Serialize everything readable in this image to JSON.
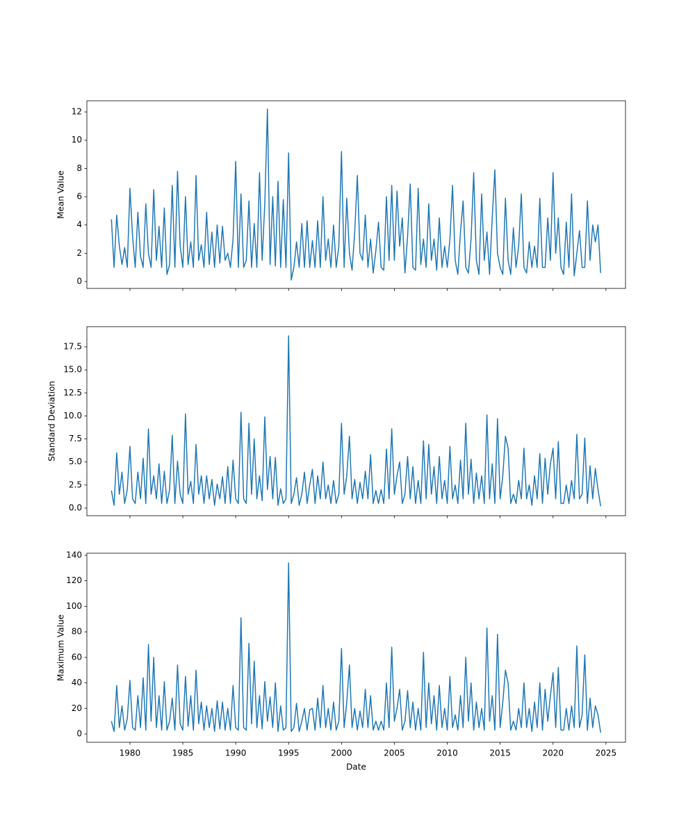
{
  "chart_data": [
    {
      "type": "line",
      "ylabel": "Mean Value",
      "color": "#1f77b4",
      "xlim": [
        1975.93,
        2026.85
      ],
      "xticks": [
        1980,
        1985,
        1990,
        1995,
        2000,
        2005,
        2010,
        2015,
        2020,
        2025
      ],
      "show_xtick_labels": false,
      "ylim": [
        -0.49,
        12.79
      ],
      "yticks": [
        0,
        2,
        4,
        6,
        8,
        10,
        12
      ],
      "x": [
        1978.25,
        1978.5,
        1978.75,
        1979,
        1979.25,
        1979.5,
        1979.75,
        1980,
        1980.25,
        1980.5,
        1980.75,
        1981,
        1981.25,
        1981.5,
        1981.75,
        1982,
        1982.25,
        1982.5,
        1982.75,
        1983,
        1983.25,
        1983.5,
        1983.75,
        1984,
        1984.25,
        1984.5,
        1984.75,
        1985,
        1985.25,
        1985.5,
        1985.75,
        1986,
        1986.25,
        1986.5,
        1986.75,
        1987,
        1987.25,
        1987.5,
        1987.75,
        1988,
        1988.25,
        1988.5,
        1988.75,
        1989,
        1989.25,
        1989.5,
        1989.75,
        1990,
        1990.25,
        1990.5,
        1990.75,
        1991,
        1991.25,
        1991.5,
        1991.75,
        1992,
        1992.25,
        1992.5,
        1992.75,
        1993,
        1993.25,
        1993.5,
        1993.75,
        1994,
        1994.25,
        1994.5,
        1994.75,
        1995,
        1995.25,
        1995.5,
        1995.75,
        1996,
        1996.25,
        1996.5,
        1996.75,
        1997,
        1997.25,
        1997.5,
        1997.75,
        1998,
        1998.25,
        1998.5,
        1998.75,
        1999,
        1999.25,
        1999.5,
        1999.75,
        2000,
        2000.25,
        2000.5,
        2000.75,
        2001,
        2001.25,
        2001.5,
        2001.75,
        2002,
        2002.25,
        2002.5,
        2002.75,
        2003,
        2003.25,
        2003.5,
        2003.75,
        2004,
        2004.25,
        2004.5,
        2004.75,
        2005,
        2005.25,
        2005.5,
        2005.75,
        2006,
        2006.25,
        2006.5,
        2006.75,
        2007,
        2007.25,
        2007.5,
        2007.75,
        2008,
        2008.25,
        2008.5,
        2008.75,
        2009,
        2009.25,
        2009.5,
        2009.75,
        2010,
        2010.25,
        2010.5,
        2010.75,
        2011,
        2011.25,
        2011.5,
        2011.75,
        2012,
        2012.25,
        2012.5,
        2012.75,
        2013,
        2013.25,
        2013.5,
        2013.75,
        2014,
        2014.25,
        2014.5,
        2014.75,
        2015,
        2015.25,
        2015.5,
        2015.75,
        2016,
        2016.25,
        2016.5,
        2016.75,
        2017,
        2017.25,
        2017.5,
        2017.75,
        2018,
        2018.25,
        2018.5,
        2018.75,
        2019,
        2019.25,
        2019.5,
        2019.75,
        2020,
        2020.25,
        2020.5,
        2020.75,
        2021,
        2021.25,
        2021.5,
        2021.75,
        2022,
        2022.25,
        2022.5,
        2022.75,
        2023,
        2023.25,
        2023.5,
        2023.75,
        2024,
        2024.25,
        2024.5
      ],
      "values": [
        4.4,
        1.0,
        4.7,
        2.5,
        1.2,
        2.4,
        1.0,
        6.6,
        3.2,
        1.0,
        4.9,
        1.8,
        1.0,
        5.5,
        2.0,
        1.0,
        6.5,
        1.5,
        3.9,
        1.0,
        5.2,
        0.5,
        1.2,
        6.8,
        1.0,
        7.8,
        2.5,
        1.0,
        6.0,
        1.2,
        2.8,
        1.0,
        7.5,
        1.5,
        2.6,
        1.0,
        4.9,
        1.2,
        3.5,
        1.0,
        4.0,
        1.3,
        3.9,
        1.5,
        2.0,
        1.0,
        3.0,
        8.5,
        1.0,
        6.2,
        1.0,
        1.5,
        5.7,
        1.0,
        4.1,
        1.0,
        7.7,
        1.5,
        5.5,
        12.2,
        1.2,
        6.0,
        1.1,
        7.1,
        1.0,
        5.8,
        1.0,
        9.1,
        0.1,
        1.0,
        2.8,
        1.0,
        4.1,
        1.0,
        4.3,
        1.0,
        2.9,
        1.0,
        4.3,
        1.0,
        6.0,
        1.5,
        3.0,
        1.0,
        4.0,
        1.0,
        2.5,
        9.2,
        1.0,
        5.9,
        2.0,
        0.8,
        3.5,
        7.5,
        2.0,
        1.5,
        4.7,
        1.0,
        3.0,
        0.6,
        2.2,
        4.2,
        1.0,
        0.8,
        6.0,
        1.5,
        6.8,
        1.5,
        6.4,
        2.5,
        4.5,
        0.6,
        3.2,
        6.9,
        1.0,
        0.8,
        6.6,
        1.2,
        3.0,
        1.0,
        5.5,
        1.5,
        3.0,
        0.8,
        4.5,
        1.0,
        2.5,
        1.0,
        3.0,
        6.8,
        1.5,
        0.5,
        3.5,
        5.7,
        1.0,
        0.6,
        3.0,
        7.7,
        1.5,
        0.5,
        6.2,
        1.5,
        3.5,
        0.5,
        4.5,
        7.9,
        2.0,
        1.0,
        0.5,
        5.9,
        1.5,
        0.5,
        3.8,
        1.0,
        2.5,
        6.2,
        1.0,
        0.6,
        2.8,
        1.0,
        2.5,
        1.0,
        5.9,
        1.0,
        1.0,
        4.5,
        1.5,
        7.7,
        2.0,
        4.5,
        1.0,
        0.5,
        4.2,
        1.0,
        6.2,
        0.4,
        2.0,
        3.6,
        1.0,
        1.0,
        5.7,
        1.5,
        4.0,
        2.8,
        4.0,
        0.6
      ]
    },
    {
      "type": "line",
      "ylabel": "Standard Deviation",
      "color": "#1f77b4",
      "xlim": [
        1975.93,
        2026.85
      ],
      "xticks": [
        1980,
        1985,
        1990,
        1995,
        2000,
        2005,
        2010,
        2015,
        2020,
        2025
      ],
      "show_xtick_labels": false,
      "ylim": [
        -0.83,
        19.69
      ],
      "yticks": [
        {
          "value": 0,
          "label": "0.0"
        },
        2.5,
        {
          "value": 5,
          "label": "5.0"
        },
        7.5,
        {
          "value": 10,
          "label": "10.0"
        },
        12.5,
        {
          "value": 15,
          "label": "15.0"
        },
        17.5
      ],
      "x": [
        1978.25,
        1978.5,
        1978.75,
        1979,
        1979.25,
        1979.5,
        1979.75,
        1980,
        1980.25,
        1980.5,
        1980.75,
        1981,
        1981.25,
        1981.5,
        1981.75,
        1982,
        1982.25,
        1982.5,
        1982.75,
        1983,
        1983.25,
        1983.5,
        1983.75,
        1984,
        1984.25,
        1984.5,
        1984.75,
        1985,
        1985.25,
        1985.5,
        1985.75,
        1986,
        1986.25,
        1986.5,
        1986.75,
        1987,
        1987.25,
        1987.5,
        1987.75,
        1988,
        1988.25,
        1988.5,
        1988.75,
        1989,
        1989.25,
        1989.5,
        1989.75,
        1990,
        1990.25,
        1990.5,
        1990.75,
        1991,
        1991.25,
        1991.5,
        1991.75,
        1992,
        1992.25,
        1992.5,
        1992.75,
        1993,
        1993.25,
        1993.5,
        1993.75,
        1994,
        1994.25,
        1994.5,
        1994.75,
        1995,
        1995.25,
        1995.5,
        1995.75,
        1996,
        1996.25,
        1996.5,
        1996.75,
        1997,
        1997.25,
        1997.5,
        1997.75,
        1998,
        1998.25,
        1998.5,
        1998.75,
        1999,
        1999.25,
        1999.5,
        1999.75,
        2000,
        2000.25,
        2000.5,
        2000.75,
        2001,
        2001.25,
        2001.5,
        2001.75,
        2002,
        2002.25,
        2002.5,
        2002.75,
        2003,
        2003.25,
        2003.5,
        2003.75,
        2004,
        2004.25,
        2004.5,
        2004.75,
        2005,
        2005.25,
        2005.5,
        2005.75,
        2006,
        2006.25,
        2006.5,
        2006.75,
        2007,
        2007.25,
        2007.5,
        2007.75,
        2008,
        2008.25,
        2008.5,
        2008.75,
        2009,
        2009.25,
        2009.5,
        2009.75,
        2010,
        2010.25,
        2010.5,
        2010.75,
        2011,
        2011.25,
        2011.5,
        2011.75,
        2012,
        2012.25,
        2012.5,
        2012.75,
        2013,
        2013.25,
        2013.5,
        2013.75,
        2014,
        2014.25,
        2014.5,
        2014.75,
        2015,
        2015.25,
        2015.5,
        2015.75,
        2016,
        2016.25,
        2016.5,
        2016.75,
        2017,
        2017.25,
        2017.5,
        2017.75,
        2018,
        2018.25,
        2018.5,
        2018.75,
        2019,
        2019.25,
        2019.5,
        2019.75,
        2020,
        2020.25,
        2020.5,
        2020.75,
        2021,
        2021.25,
        2021.5,
        2021.75,
        2022,
        2022.25,
        2022.5,
        2022.75,
        2023,
        2023.25,
        2023.5,
        2023.75,
        2024,
        2024.25,
        2024.5
      ],
      "values": [
        1.9,
        0.3,
        6.0,
        1.5,
        3.9,
        0.5,
        2.0,
        6.7,
        1.0,
        0.5,
        3.9,
        1.0,
        5.4,
        0.5,
        8.6,
        1.5,
        3.5,
        1.0,
        4.8,
        0.5,
        4.0,
        0.5,
        2.0,
        7.9,
        0.5,
        5.1,
        1.5,
        0.5,
        10.2,
        1.5,
        2.9,
        0.5,
        6.9,
        1.5,
        3.5,
        0.5,
        3.5,
        1.0,
        3.1,
        0.3,
        2.6,
        1.0,
        3.4,
        0.5,
        4.5,
        0.5,
        5.2,
        1.0,
        0.5,
        10.4,
        1.0,
        0.5,
        9.2,
        1.5,
        7.5,
        1.0,
        3.5,
        0.8,
        9.9,
        2.0,
        5.6,
        1.0,
        5.5,
        0.3,
        2.1,
        0.5,
        1.0,
        18.7,
        0.5,
        1.5,
        3.3,
        0.3,
        1.5,
        3.9,
        0.5,
        2.5,
        4.2,
        0.5,
        3.5,
        1.0,
        5.0,
        1.0,
        2.5,
        0.5,
        3.0,
        0.5,
        1.5,
        9.2,
        1.5,
        3.5,
        7.8,
        1.0,
        3.1,
        0.5,
        2.8,
        1.0,
        4.0,
        1.0,
        5.8,
        0.5,
        1.9,
        0.5,
        2.0,
        0.5,
        6.4,
        1.0,
        8.6,
        1.5,
        3.5,
        5.0,
        0.5,
        1.5,
        5.6,
        1.0,
        4.5,
        0.5,
        3.0,
        0.5,
        7.3,
        1.0,
        6.9,
        1.5,
        4.5,
        0.5,
        5.6,
        1.0,
        3.0,
        0.5,
        6.7,
        1.0,
        2.5,
        0.5,
        5.2,
        1.0,
        9.2,
        1.5,
        5.3,
        0.5,
        3.8,
        1.0,
        3.5,
        0.5,
        10.1,
        1.0,
        4.8,
        0.5,
        9.7,
        1.0,
        3.5,
        7.8,
        6.5,
        0.5,
        1.5,
        0.5,
        3.0,
        1.0,
        6.5,
        1.0,
        2.5,
        0.3,
        3.5,
        1.0,
        5.9,
        0.5,
        5.4,
        1.5,
        4.8,
        6.5,
        1.0,
        7.2,
        0.5,
        0.5,
        2.5,
        0.5,
        3.0,
        1.0,
        8.0,
        1.0,
        1.5,
        7.6,
        0.5,
        4.6,
        1.0,
        4.3,
        2.0,
        0.2
      ]
    },
    {
      "type": "line",
      "ylabel": "Maximum Value",
      "xlabel": "Date",
      "color": "#1f77b4",
      "xlim": [
        1975.93,
        2026.85
      ],
      "xticks": [
        1980,
        1985,
        1990,
        1995,
        2000,
        2005,
        2010,
        2015,
        2020,
        2025
      ],
      "show_xtick_labels": true,
      "ylim": [
        -6.5,
        141.6
      ],
      "yticks": [
        0,
        20,
        40,
        60,
        80,
        100,
        120,
        140
      ],
      "x": [
        1978.25,
        1978.5,
        1978.75,
        1979,
        1979.25,
        1979.5,
        1979.75,
        1980,
        1980.25,
        1980.5,
        1980.75,
        1981,
        1981.25,
        1981.5,
        1981.75,
        1982,
        1982.25,
        1982.5,
        1982.75,
        1983,
        1983.25,
        1983.5,
        1983.75,
        1984,
        1984.25,
        1984.5,
        1984.75,
        1985,
        1985.25,
        1985.5,
        1985.75,
        1986,
        1986.25,
        1986.5,
        1986.75,
        1987,
        1987.25,
        1987.5,
        1987.75,
        1988,
        1988.25,
        1988.5,
        1988.75,
        1989,
        1989.25,
        1989.5,
        1989.75,
        1990,
        1990.25,
        1990.5,
        1990.75,
        1991,
        1991.25,
        1991.5,
        1991.75,
        1992,
        1992.25,
        1992.5,
        1992.75,
        1993,
        1993.25,
        1993.5,
        1993.75,
        1994,
        1994.25,
        1994.5,
        1994.75,
        1995,
        1995.25,
        1995.5,
        1995.75,
        1996,
        1996.25,
        1996.5,
        1996.75,
        1997,
        1997.25,
        1997.5,
        1997.75,
        1998,
        1998.25,
        1998.5,
        1998.75,
        1999,
        1999.25,
        1999.5,
        1999.75,
        2000,
        2000.25,
        2000.5,
        2000.75,
        2001,
        2001.25,
        2001.5,
        2001.75,
        2002,
        2002.25,
        2002.5,
        2002.75,
        2003,
        2003.25,
        2003.5,
        2003.75,
        2004,
        2004.25,
        2004.5,
        2004.75,
        2005,
        2005.25,
        2005.5,
        2005.75,
        2006,
        2006.25,
        2006.5,
        2006.75,
        2007,
        2007.25,
        2007.5,
        2007.75,
        2008,
        2008.25,
        2008.5,
        2008.75,
        2009,
        2009.25,
        2009.5,
        2009.75,
        2010,
        2010.25,
        2010.5,
        2010.75,
        2011,
        2011.25,
        2011.5,
        2011.75,
        2012,
        2012.25,
        2012.5,
        2012.75,
        2013,
        2013.25,
        2013.5,
        2013.75,
        2014,
        2014.25,
        2014.5,
        2014.75,
        2015,
        2015.25,
        2015.5,
        2015.75,
        2016,
        2016.25,
        2016.5,
        2016.75,
        2017,
        2017.25,
        2017.5,
        2017.75,
        2018,
        2018.25,
        2018.5,
        2018.75,
        2019,
        2019.25,
        2019.5,
        2019.75,
        2020,
        2020.25,
        2020.5,
        2020.75,
        2021,
        2021.25,
        2021.5,
        2021.75,
        2022,
        2022.25,
        2022.5,
        2022.75,
        2023,
        2023.25,
        2023.5,
        2023.75,
        2024,
        2024.25,
        2024.5
      ],
      "values": [
        10,
        2,
        38,
        5,
        22,
        3,
        12,
        42,
        5,
        3,
        30,
        5,
        44,
        3,
        70,
        10,
        60,
        5,
        30,
        3,
        41,
        3,
        10,
        28,
        3,
        54,
        8,
        3,
        45,
        6,
        30,
        3,
        50,
        8,
        25,
        3,
        22,
        5,
        20,
        2,
        26,
        4,
        25,
        3,
        20,
        3,
        38,
        5,
        3,
        91,
        5,
        3,
        71,
        8,
        57,
        5,
        30,
        4,
        41,
        10,
        29,
        5,
        40,
        2,
        22,
        3,
        5,
        134,
        2,
        5,
        24,
        2,
        10,
        20,
        3,
        19,
        20,
        3,
        28,
        5,
        38,
        5,
        20,
        3,
        25,
        3,
        10,
        67,
        5,
        25,
        54,
        5,
        20,
        3,
        18,
        5,
        35,
        5,
        30,
        3,
        10,
        3,
        10,
        3,
        40,
        5,
        68,
        10,
        20,
        35,
        3,
        10,
        34,
        5,
        25,
        3,
        20,
        3,
        64,
        5,
        40,
        8,
        30,
        3,
        38,
        5,
        20,
        3,
        45,
        5,
        15,
        3,
        30,
        5,
        60,
        10,
        40,
        3,
        25,
        5,
        20,
        3,
        83,
        10,
        30,
        3,
        78,
        5,
        25,
        50,
        40,
        3,
        10,
        3,
        20,
        5,
        40,
        5,
        20,
        2,
        25,
        5,
        40,
        3,
        35,
        10,
        30,
        48,
        5,
        52,
        3,
        3,
        20,
        3,
        22,
        5,
        69,
        5,
        15,
        62,
        3,
        28,
        5,
        22,
        15,
        1
      ]
    }
  ]
}
